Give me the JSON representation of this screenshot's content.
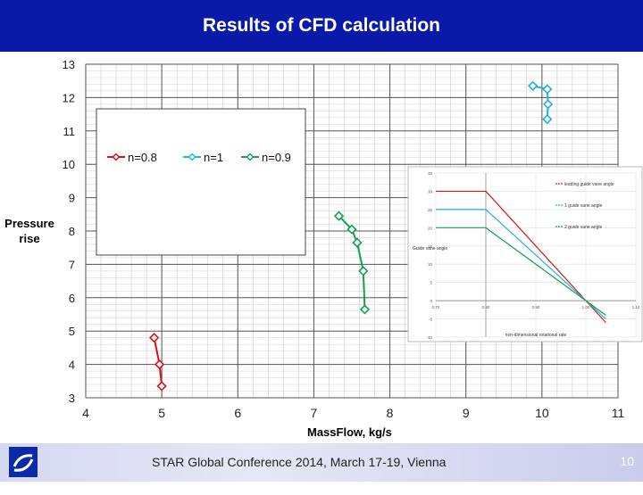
{
  "slide": {
    "title": "Results of CFD calculation",
    "footer": "STAR Global Conference 2014, March 17-19, Vienna",
    "page_number": "10",
    "logo_icon": "star-ccm-logo-icon"
  },
  "colors": {
    "title_bar": "#0a1aa8",
    "series_red": "#e01010",
    "series_blue": "#20b0e0",
    "series_green": "#10a050"
  },
  "chart_data": [
    {
      "type": "line",
      "title": "",
      "xlabel": "MassFlow, kg/s",
      "ylabel": "Pressure rise",
      "xlim": [
        4,
        11
      ],
      "ylim": [
        3,
        13
      ],
      "x_ticks": [
        "4",
        "5",
        "6",
        "7",
        "8",
        "9",
        "10",
        "11"
      ],
      "y_ticks": [
        "3",
        "4",
        "5",
        "6",
        "7",
        "8",
        "9",
        "10",
        "11",
        "12",
        "13"
      ],
      "grid": true,
      "legend_position": "top-left",
      "marker": "diamond",
      "series": [
        {
          "name": "n=0.8",
          "color": "#e01010",
          "points": [
            [
              4.9,
              4.8
            ],
            [
              4.97,
              4.0
            ],
            [
              5.0,
              3.35
            ]
          ]
        },
        {
          "name": "n=1",
          "color": "#20b0e0",
          "points": [
            [
              9.88,
              12.35
            ],
            [
              10.07,
              12.25
            ],
            [
              10.08,
              11.8
            ],
            [
              10.07,
              11.35
            ]
          ]
        },
        {
          "name": "n=0.9",
          "color": "#10a050",
          "points": [
            [
              7.33,
              8.45
            ],
            [
              7.5,
              8.05
            ],
            [
              7.57,
              7.65
            ],
            [
              7.65,
              6.8
            ],
            [
              7.67,
              5.65
            ]
          ]
        }
      ]
    },
    {
      "type": "line",
      "title": "",
      "xlabel": "non-dimensional rotational rate",
      "ylabel": "Guide vane angle",
      "xlim": [
        0.7,
        1.1
      ],
      "ylim": [
        -10,
        35
      ],
      "x_ticks": [
        "0.70",
        "0.80",
        "0.90",
        "1.00",
        "1.10"
      ],
      "y_ticks": [
        "-10",
        "-5",
        "0",
        "5",
        "10",
        "15",
        "20",
        "25",
        "30",
        "35"
      ],
      "grid": true,
      "legend_position": "top-right",
      "series": [
        {
          "name": "leading guide vane angle",
          "color": "#e01010",
          "points": [
            [
              0.7,
              30
            ],
            [
              0.8,
              30
            ],
            [
              1.0,
              0
            ],
            [
              1.04,
              -6
            ]
          ]
        },
        {
          "name": "1 guide vane angle",
          "color": "#20b0e0",
          "points": [
            [
              0.7,
              25
            ],
            [
              0.8,
              25
            ],
            [
              1.0,
              0
            ],
            [
              1.04,
              -5
            ]
          ]
        },
        {
          "name": "2 guide vane angle",
          "color": "#10a050",
          "points": [
            [
              0.7,
              20
            ],
            [
              0.8,
              20
            ],
            [
              1.0,
              0
            ],
            [
              1.04,
              -4
            ]
          ]
        }
      ]
    }
  ]
}
